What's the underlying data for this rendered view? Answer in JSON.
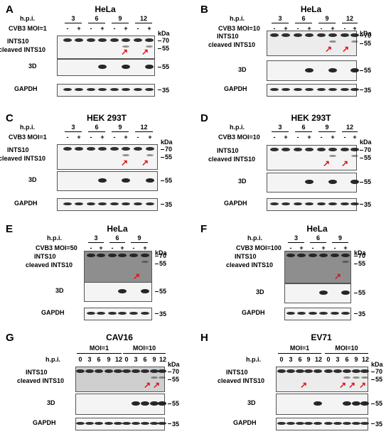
{
  "panels": {
    "A": {
      "letter": "A",
      "title": "HeLa",
      "hpi": "h.p.i.",
      "times": [
        "3",
        "6",
        "9",
        "12"
      ],
      "condition": "CVB3 MOI=1",
      "signs": [
        "-",
        "+",
        "-",
        "+",
        "-",
        "+",
        "-",
        "+"
      ],
      "row1": "INTS10",
      "row2": "cleaved INTS10",
      "row3": "3D",
      "row4": "GAPDH",
      "kda": "kDa",
      "m70": "70",
      "m55a": "55",
      "m55b": "55",
      "m35": "35"
    },
    "B": {
      "letter": "B",
      "title": "HeLa",
      "hpi": "h.p.i.",
      "times": [
        "3",
        "6",
        "9",
        "12"
      ],
      "condition": "CVB3 MOI=10",
      "signs": [
        "-",
        "+",
        "-",
        "+",
        "-",
        "+",
        "-",
        "+"
      ],
      "row1": "INTS10",
      "row2": "cleaved INTS10",
      "row3": "3D",
      "row4": "GAPDH",
      "kda": "kDa",
      "m70": "70",
      "m55a": "55",
      "m55b": "55",
      "m35": "35"
    },
    "C": {
      "letter": "C",
      "title": "HEK 293T",
      "hpi": "h.p.i.",
      "times": [
        "3",
        "6",
        "9",
        "12"
      ],
      "condition": "CVB3 MOI=1",
      "signs": [
        "-",
        "+",
        "-",
        "+",
        "-",
        "+",
        "-",
        "+"
      ],
      "row1": "INTS10",
      "row2": "cleaved INTS10",
      "row3": "3D",
      "row4": "GAPDH",
      "kda": "kDa",
      "m70": "70",
      "m55a": "55",
      "m55b": "55",
      "m35": "35"
    },
    "D": {
      "letter": "D",
      "title": "HEK 293T",
      "hpi": "h.p.i.",
      "times": [
        "3",
        "6",
        "9",
        "12"
      ],
      "condition": "CVB3 MOI=10",
      "signs": [
        "-",
        "+",
        "-",
        "+",
        "-",
        "+",
        "-",
        "+"
      ],
      "row1": "INTS10",
      "row2": "cleaved INTS10",
      "row3": "3D",
      "row4": "GAPDH",
      "kda": "kDa",
      "m70": "70",
      "m55a": "55",
      "m55b": "55",
      "m35": "35"
    },
    "E": {
      "letter": "E",
      "title": "HeLa",
      "hpi": "h.p.i.",
      "times": [
        "3",
        "6",
        "9"
      ],
      "condition": "CVB3 MOI=50",
      "signs": [
        "-",
        "+",
        "-",
        "+",
        "-",
        "+"
      ],
      "row1": "INTS10",
      "row2": "cleaved INTS10",
      "row3": "3D",
      "row4": "GAPDH",
      "kda": "kDa",
      "m70": "70",
      "m55a": "55",
      "m55b": "55",
      "m35": "35"
    },
    "F": {
      "letter": "F",
      "title": "HeLa",
      "hpi": "h.p.i.",
      "times": [
        "3",
        "6",
        "9"
      ],
      "condition": "CVB3 MOI=100",
      "signs": [
        "-",
        "+",
        "-",
        "+",
        "-",
        "+"
      ],
      "row1": "INTS10",
      "row2": "cleaved INTS10",
      "row3": "3D",
      "row4": "GAPDH",
      "kda": "kDa",
      "m70": "70",
      "m55a": "55",
      "m55b": "55",
      "m35": "35"
    },
    "G": {
      "letter": "G",
      "title": "CAV16",
      "group1": "MOI=1",
      "group2": "MOI=10",
      "hpi": "h.p.i.",
      "times": [
        "0",
        "3",
        "6",
        "9",
        "12",
        "0",
        "3",
        "6",
        "9",
        "12"
      ],
      "row1": "INTS10",
      "row2": "cleaved INTS10",
      "row3": "3D",
      "row4": "GAPDH",
      "kda": "kDa",
      "m70": "70",
      "m55a": "55",
      "m55b": "55",
      "m35": "35"
    },
    "H": {
      "letter": "H",
      "title": "EV71",
      "group1": "MOI=1",
      "group2": "MOI=10",
      "hpi": "h.p.i.",
      "times": [
        "0",
        "3",
        "6",
        "9",
        "12",
        "0",
        "3",
        "6",
        "9",
        "12"
      ],
      "row1": "INTS10",
      "row2": "cleaved INTS10",
      "row3": "3D",
      "row4": "GAPDH",
      "kda": "kDa",
      "m70": "70",
      "m55a": "55",
      "m55b": "55",
      "m35": "35"
    }
  },
  "colors": {
    "arrow": "#e01010",
    "band": "#1a1a1a",
    "background": "#ffffff"
  },
  "icons": {
    "arrow": "red-arrow-icon"
  }
}
